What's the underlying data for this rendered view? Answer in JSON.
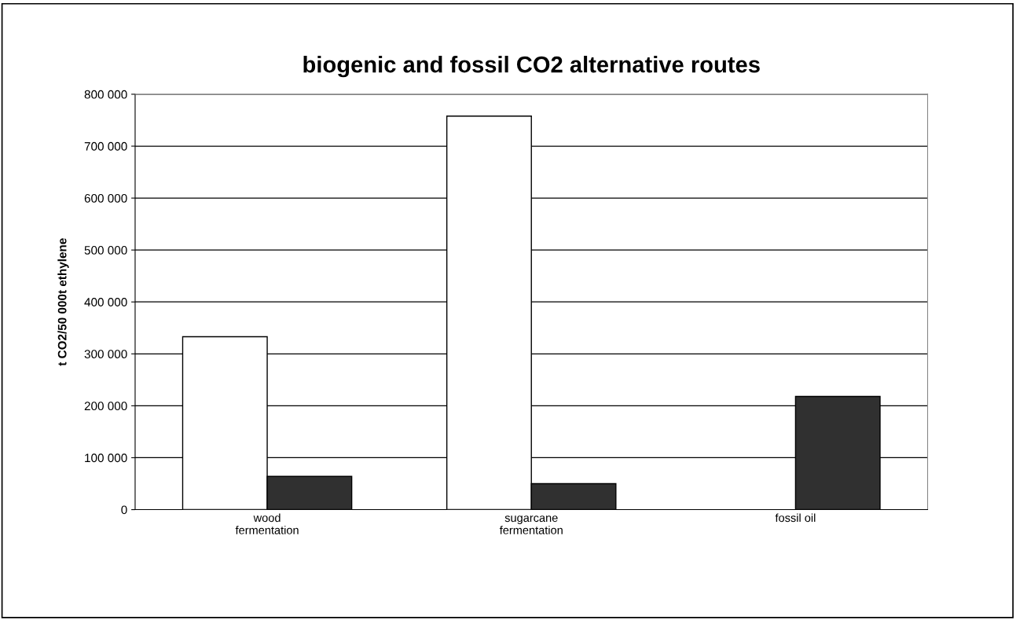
{
  "chart_data": {
    "type": "bar",
    "title": "biogenic and fossil CO2 alternative routes",
    "ylabel": "t CO2/50 000t ethylene",
    "categories": [
      "wood\nfermentation",
      "sugarcane\nfermentation",
      "fossil oil"
    ],
    "series": [
      {
        "color": "#ffffff",
        "values": [
          333000,
          758000,
          null
        ]
      },
      {
        "color": "#303030",
        "values": [
          64000,
          50000,
          218000
        ]
      }
    ],
    "ylim": [
      0,
      800000
    ],
    "yticks": [
      {
        "value": 0,
        "label": "0"
      },
      {
        "value": 100000,
        "label": "100 000"
      },
      {
        "value": 200000,
        "label": "200 000"
      },
      {
        "value": 300000,
        "label": "300 000"
      },
      {
        "value": 400000,
        "label": "400 000"
      },
      {
        "value": 500000,
        "label": "500 000"
      },
      {
        "value": 600000,
        "label": "600 000"
      },
      {
        "value": 700000,
        "label": "700 000"
      },
      {
        "value": 800000,
        "label": "800 000"
      }
    ],
    "grid": "y"
  }
}
